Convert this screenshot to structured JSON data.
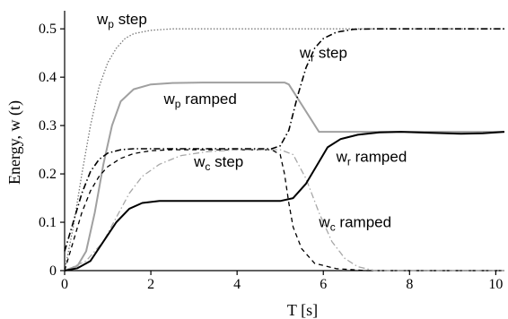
{
  "chart_data": {
    "type": "line",
    "xlabel": "T [s]",
    "ylabel": "Energy, w (t)",
    "xlim": [
      0,
      10.2
    ],
    "ylim": [
      0,
      0.53
    ],
    "xticks": [
      0,
      2,
      4,
      6,
      8,
      10
    ],
    "yticks": [
      0,
      0.1,
      0.2,
      0.3,
      0.4,
      0.5
    ],
    "xtick_labels": [
      "0",
      "2",
      "4",
      "6",
      "8",
      "10"
    ],
    "ytick_labels": [
      "0",
      "0.1",
      "0.2",
      "0.3",
      "0.4",
      "0.5"
    ],
    "grid": false,
    "series": [
      {
        "key": "wp_step",
        "color": "#777777",
        "dash": "1.5,2",
        "width": 1.3,
        "points": [
          [
            0,
            0
          ],
          [
            0.2,
            0.09
          ],
          [
            0.4,
            0.2
          ],
          [
            0.6,
            0.3
          ],
          [
            0.8,
            0.38
          ],
          [
            1.0,
            0.43
          ],
          [
            1.2,
            0.46
          ],
          [
            1.4,
            0.48
          ],
          [
            1.6,
            0.49
          ],
          [
            2.0,
            0.497
          ],
          [
            2.5,
            0.5
          ],
          [
            10.2,
            0.5
          ]
        ]
      },
      {
        "key": "wp_ramped",
        "color": "#a0a0a0",
        "dash": "",
        "width": 2,
        "points": [
          [
            0,
            0
          ],
          [
            0.3,
            0.01
          ],
          [
            0.5,
            0.04
          ],
          [
            0.7,
            0.12
          ],
          [
            0.9,
            0.22
          ],
          [
            1.1,
            0.3
          ],
          [
            1.3,
            0.35
          ],
          [
            1.6,
            0.375
          ],
          [
            2.0,
            0.385
          ],
          [
            2.5,
            0.388
          ],
          [
            3.2,
            0.389
          ],
          [
            5.1,
            0.389
          ],
          [
            5.2,
            0.385
          ],
          [
            5.9,
            0.287
          ],
          [
            6.5,
            0.287
          ],
          [
            10.2,
            0.287
          ]
        ]
      },
      {
        "key": "wc_step",
        "color": "#000000",
        "dash": "5,4",
        "width": 1.3,
        "points": [
          [
            0,
            0
          ],
          [
            0.2,
            0.06
          ],
          [
            0.4,
            0.12
          ],
          [
            0.6,
            0.165
          ],
          [
            0.8,
            0.195
          ],
          [
            1.0,
            0.215
          ],
          [
            1.3,
            0.232
          ],
          [
            1.6,
            0.242
          ],
          [
            2.0,
            0.248
          ],
          [
            2.5,
            0.25
          ],
          [
            4.8,
            0.25
          ],
          [
            5.0,
            0.24
          ],
          [
            5.1,
            0.2
          ],
          [
            5.2,
            0.14
          ],
          [
            5.3,
            0.09
          ],
          [
            5.5,
            0.045
          ],
          [
            5.8,
            0.015
          ],
          [
            6.3,
            0.004
          ],
          [
            7.0,
            0.0
          ],
          [
            10.2,
            0.0
          ]
        ]
      },
      {
        "key": "wc_ramped",
        "color": "#a8a8a8",
        "dash": "7,3,1.5,3",
        "width": 1.3,
        "points": [
          [
            0,
            0
          ],
          [
            0.5,
            0.02
          ],
          [
            0.9,
            0.06
          ],
          [
            1.2,
            0.11
          ],
          [
            1.5,
            0.16
          ],
          [
            1.8,
            0.195
          ],
          [
            2.2,
            0.22
          ],
          [
            2.7,
            0.238
          ],
          [
            3.3,
            0.246
          ],
          [
            4.0,
            0.25
          ],
          [
            5.0,
            0.25
          ],
          [
            5.3,
            0.24
          ],
          [
            5.6,
            0.19
          ],
          [
            5.9,
            0.12
          ],
          [
            6.2,
            0.06
          ],
          [
            6.5,
            0.025
          ],
          [
            6.8,
            0.008
          ],
          [
            7.2,
            0.0
          ],
          [
            10.2,
            0.0
          ]
        ]
      },
      {
        "key": "wr_step",
        "color": "#000000",
        "dash": "7,3,1.5,3",
        "width": 1.6,
        "points": [
          [
            0,
            0.04
          ],
          [
            0.2,
            0.1
          ],
          [
            0.4,
            0.16
          ],
          [
            0.6,
            0.205
          ],
          [
            0.8,
            0.23
          ],
          [
            1.0,
            0.243
          ],
          [
            1.3,
            0.25
          ],
          [
            1.6,
            0.252
          ],
          [
            2.0,
            0.252
          ],
          [
            4.8,
            0.252
          ],
          [
            5.0,
            0.258
          ],
          [
            5.2,
            0.29
          ],
          [
            5.4,
            0.36
          ],
          [
            5.6,
            0.42
          ],
          [
            5.8,
            0.46
          ],
          [
            6.0,
            0.48
          ],
          [
            6.3,
            0.493
          ],
          [
            6.7,
            0.499
          ],
          [
            7.2,
            0.5
          ],
          [
            10.2,
            0.5
          ]
        ]
      },
      {
        "key": "wr_ramped",
        "color": "#000000",
        "dash": "",
        "width": 2,
        "points": [
          [
            0,
            0
          ],
          [
            0.3,
            0.005
          ],
          [
            0.6,
            0.02
          ],
          [
            0.9,
            0.06
          ],
          [
            1.2,
            0.1
          ],
          [
            1.5,
            0.128
          ],
          [
            1.8,
            0.14
          ],
          [
            2.2,
            0.144
          ],
          [
            4.0,
            0.144
          ],
          [
            5.0,
            0.144
          ],
          [
            5.3,
            0.15
          ],
          [
            5.6,
            0.18
          ],
          [
            5.9,
            0.225
          ],
          [
            6.1,
            0.255
          ],
          [
            6.4,
            0.272
          ],
          [
            6.8,
            0.281
          ],
          [
            7.3,
            0.286
          ],
          [
            7.8,
            0.287
          ],
          [
            8.5,
            0.285
          ],
          [
            9.2,
            0.283
          ],
          [
            9.7,
            0.284
          ],
          [
            10.2,
            0.287
          ]
        ]
      }
    ],
    "annotations": [
      {
        "main": "w",
        "sub": "p",
        "rest": " step",
        "x": 0.75,
        "y": 0.51
      },
      {
        "main": "w",
        "sub": "r",
        "rest": " step",
        "x": 5.45,
        "y": 0.44
      },
      {
        "main": "w",
        "sub": "p",
        "rest": " ramped",
        "x": 2.3,
        "y": 0.345
      },
      {
        "main": "w",
        "sub": "c",
        "rest": " step",
        "x": 3.0,
        "y": 0.215
      },
      {
        "main": "w",
        "sub": "r",
        "rest": " ramped",
        "x": 6.3,
        "y": 0.225
      },
      {
        "main": "w",
        "sub": "c",
        "rest": " ramped",
        "x": 5.9,
        "y": 0.09
      }
    ]
  }
}
